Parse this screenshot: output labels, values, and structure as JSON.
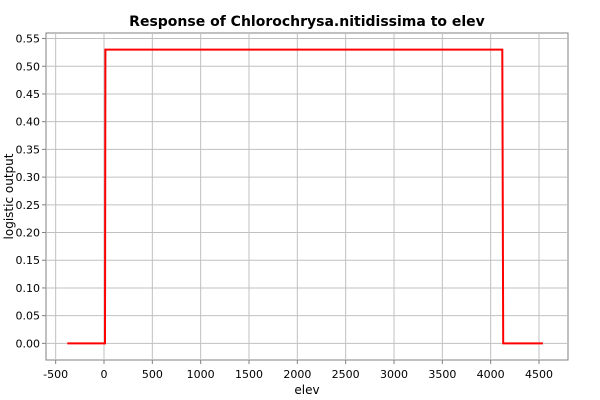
{
  "chart_data": {
    "type": "line",
    "title": "Response of Chlorochrysa.nitidissima to elev",
    "xlabel": "elev",
    "ylabel": "logistic output",
    "xlim": [
      -600,
      4800
    ],
    "ylim": [
      -0.03,
      0.56
    ],
    "xticks": [
      -500,
      0,
      500,
      1000,
      1500,
      2000,
      2500,
      3000,
      3500,
      4000,
      4500
    ],
    "xtick_labels": [
      "-500",
      "0",
      "500",
      "1000",
      "1500",
      "2000",
      "2500",
      "3000",
      "3500",
      "4000",
      "4500"
    ],
    "yticks": [
      0.0,
      0.05,
      0.1,
      0.15,
      0.2,
      0.25,
      0.3,
      0.35,
      0.4,
      0.45,
      0.5,
      0.55
    ],
    "ytick_labels": [
      "0.00",
      "0.05",
      "0.10",
      "0.15",
      "0.20",
      "0.25",
      "0.30",
      "0.35",
      "0.40",
      "0.45",
      "0.50",
      "0.55"
    ],
    "grid": true,
    "legend": "none",
    "series": [
      {
        "color": "#ff0000",
        "x": [
          -380,
          10,
          15,
          4120,
          4130,
          4540
        ],
        "y": [
          0.0,
          0.0,
          0.53,
          0.53,
          0.0,
          0.0
        ]
      }
    ]
  }
}
